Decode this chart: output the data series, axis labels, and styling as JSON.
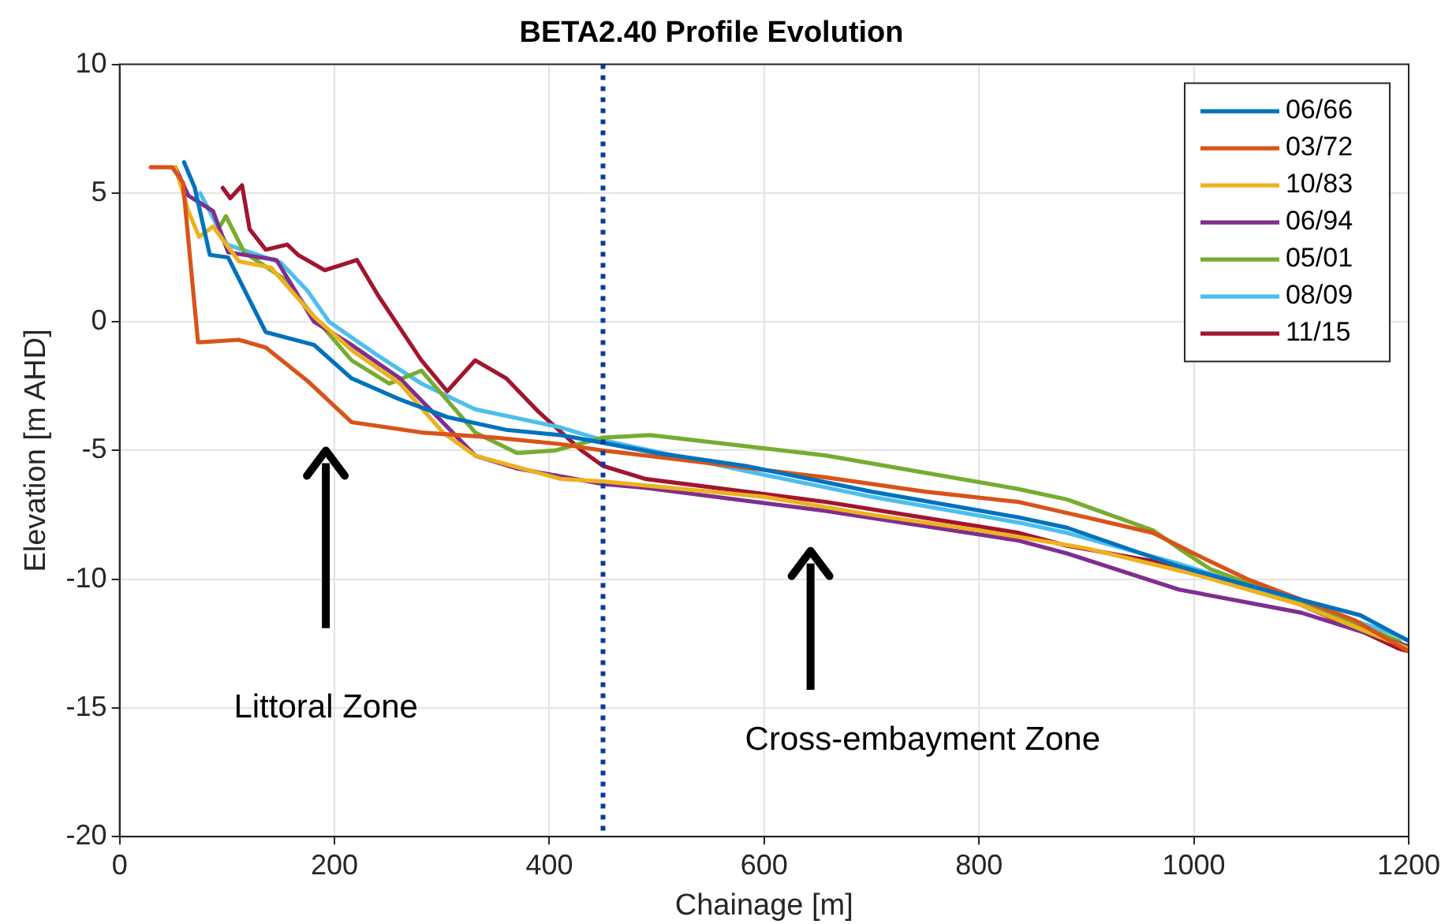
{
  "chart_data": {
    "type": "line",
    "title": "BETA2.40 Profile Evolution",
    "xlabel": "Chainage [m]",
    "ylabel": "Elevation [m AHD]",
    "xlim": [
      0,
      1200
    ],
    "xticks": [
      0,
      200,
      400,
      600,
      800,
      1000,
      1200
    ],
    "ylim": [
      -20,
      10
    ],
    "yticks": [
      -20,
      -15,
      -10,
      -5,
      0,
      5,
      10
    ],
    "grid": true,
    "legend": "top right",
    "marker": "none",
    "line_style": "solid",
    "ref_lines": [
      {
        "axis": "x",
        "value": 450,
        "color": "#0a3aa0",
        "line_style": "dotted"
      }
    ],
    "annotations": [
      "Littoral Zone",
      "Cross-embayment Zone"
    ],
    "series": [
      {
        "name": "06/66",
        "color": "#0072bd",
        "x": [
          60,
          70,
          84,
          101,
          136,
          181,
          216,
          260,
          305,
          360,
          410,
          450,
          500,
          583,
          700,
          837,
          882,
          986,
          1100,
          1155,
          1200
        ],
        "values": [
          6.2,
          5.2,
          2.6,
          2.5,
          -0.4,
          -0.9,
          -2.2,
          -3.0,
          -3.7,
          -4.2,
          -4.4,
          -4.7,
          -5.1,
          -5.6,
          -6.6,
          -7.6,
          -8.0,
          -9.5,
          -10.8,
          -11.4,
          -12.4
        ]
      },
      {
        "name": "03/72",
        "color": "#d95319",
        "x": [
          29,
          49,
          59,
          73,
          111,
          136,
          175,
          216,
          281,
          350,
          410,
          450,
          550,
          658,
          750,
          837,
          900,
          962,
          1000,
          1050,
          1100,
          1150,
          1200
        ],
        "values": [
          6.0,
          6.0,
          5.4,
          -0.8,
          -0.7,
          -1.0,
          -2.3,
          -3.9,
          -4.3,
          -4.5,
          -4.75,
          -5.0,
          -5.5,
          -6.05,
          -6.6,
          -7.0,
          -7.6,
          -8.2,
          -9.0,
          -10.0,
          -10.8,
          -11.6,
          -12.8
        ]
      },
      {
        "name": "10/83",
        "color": "#edb120",
        "x": [
          52,
          64,
          74,
          87,
          111,
          141,
          181,
          216,
          261,
          301,
          331,
          410,
          450,
          600,
          700,
          800,
          900,
          1000,
          1100,
          1200
        ],
        "values": [
          6.0,
          4.3,
          3.3,
          3.7,
          2.35,
          2.1,
          0.2,
          -1.1,
          -2.4,
          -4.3,
          -5.2,
          -6.1,
          -6.2,
          -6.8,
          -7.5,
          -8.1,
          -8.8,
          -9.8,
          -11.0,
          -12.7
        ]
      },
      {
        "name": "06/94",
        "color": "#7e2f8e",
        "x": [
          52,
          64,
          87,
          101,
          146,
          181,
          216,
          261,
          331,
          370,
          450,
          489,
          658,
          837,
          882,
          986,
          1100,
          1191,
          1200
        ],
        "values": [
          6.0,
          4.9,
          4.3,
          2.7,
          2.4,
          0.0,
          -0.9,
          -2.2,
          -5.2,
          -5.7,
          -6.3,
          -6.45,
          -7.35,
          -8.5,
          -9.0,
          -10.4,
          -11.3,
          -12.5,
          -12.6
        ]
      },
      {
        "name": "05/01",
        "color": "#77ac30",
        "x": [
          94,
          99,
          116,
          152,
          181,
          216,
          251,
          281,
          331,
          370,
          405,
          450,
          494,
          658,
          837,
          882,
          962,
          986,
          1015,
          1060,
          1135,
          1191,
          1200
        ],
        "values": [
          3.75,
          4.1,
          2.7,
          1.7,
          0.2,
          -1.5,
          -2.4,
          -1.9,
          -4.3,
          -5.1,
          -5.0,
          -4.5,
          -4.4,
          -5.2,
          -6.5,
          -6.9,
          -8.1,
          -8.8,
          -9.6,
          -10.3,
          -11.5,
          -12.4,
          -12.8
        ]
      },
      {
        "name": "08/09",
        "color": "#4dbeee",
        "x": [
          75,
          100,
          150,
          175,
          195,
          240,
          281,
          331,
          410,
          450,
          583,
          700,
          837,
          882,
          986,
          1100,
          1191,
          1200
        ],
        "values": [
          5.0,
          3.0,
          2.3,
          1.2,
          0.0,
          -1.3,
          -2.4,
          -3.4,
          -4.1,
          -4.6,
          -5.8,
          -6.8,
          -7.8,
          -8.2,
          -9.4,
          -10.9,
          -12.2,
          -12.4
        ]
      },
      {
        "name": "11/15",
        "color": "#a2142f",
        "x": [
          96,
          103,
          114,
          121,
          136,
          156,
          166,
          191,
          221,
          241,
          281,
          305,
          331,
          360,
          390,
          430,
          450,
          489,
          658,
          837,
          882,
          962,
          1036,
          1100,
          1155,
          1191,
          1200
        ],
        "values": [
          5.2,
          4.8,
          5.3,
          3.6,
          2.8,
          3.0,
          2.6,
          2.0,
          2.4,
          1.0,
          -1.5,
          -2.7,
          -1.5,
          -2.2,
          -3.5,
          -5.0,
          -5.6,
          -6.1,
          -7.0,
          -8.2,
          -8.7,
          -9.3,
          -10.1,
          -11.0,
          -12.0,
          -12.7,
          -12.8
        ]
      }
    ]
  }
}
